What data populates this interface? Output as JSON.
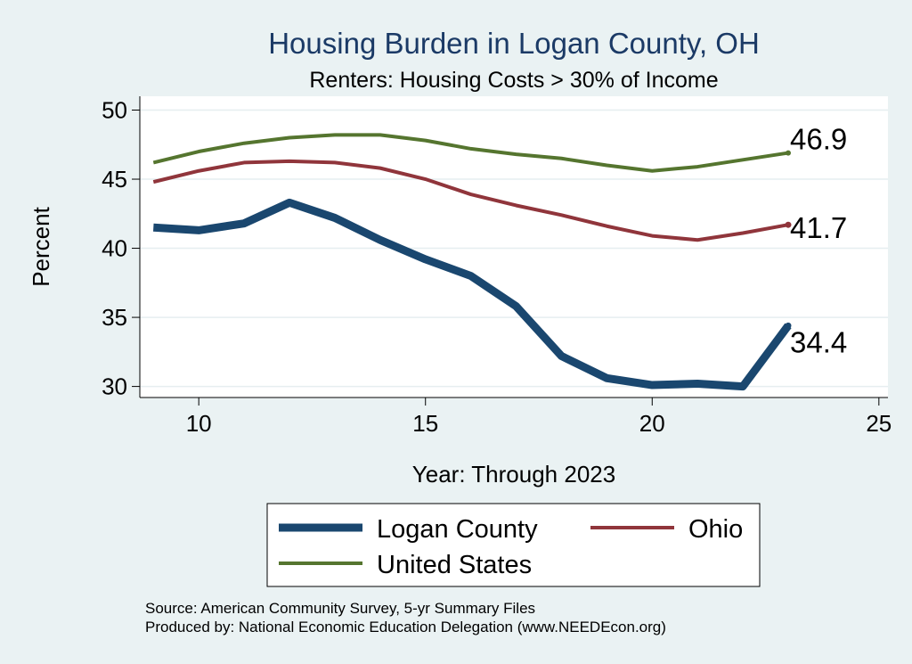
{
  "chart_data": {
    "type": "line",
    "title": "Housing Burden in Logan County, OH",
    "subtitle": "Renters: Housing Costs > 30% of Income",
    "xlabel": "Year: Through 2023",
    "ylabel": "Percent",
    "xlim": [
      8.7,
      25.2
    ],
    "ylim": [
      29.2,
      51
    ],
    "xticks": [
      10,
      15,
      20,
      25
    ],
    "yticks": [
      30,
      35,
      40,
      45,
      50
    ],
    "grid": "horizontal",
    "x": [
      9,
      10,
      11,
      12,
      13,
      14,
      15,
      16,
      17,
      18,
      19,
      20,
      21,
      22,
      23
    ],
    "series": [
      {
        "name": "Logan County",
        "color": "#1a476f",
        "values": [
          41.5,
          41.3,
          41.8,
          43.3,
          42.2,
          40.6,
          39.2,
          38.0,
          35.8,
          32.2,
          30.6,
          30.1,
          30.2,
          30.0,
          34.4
        ],
        "end_label": "34.4"
      },
      {
        "name": "Ohio",
        "color": "#90353b",
        "values": [
          44.8,
          45.6,
          46.2,
          46.3,
          46.2,
          45.8,
          45.0,
          43.9,
          43.1,
          42.4,
          41.6,
          40.9,
          40.6,
          41.1,
          41.7
        ],
        "end_label": "41.7"
      },
      {
        "name": "United States",
        "color": "#55752f",
        "values": [
          46.2,
          47.0,
          47.6,
          48.0,
          48.2,
          48.2,
          47.8,
          47.2,
          46.8,
          46.5,
          46.0,
          45.6,
          45.9,
          46.4,
          46.9
        ],
        "end_label": "46.9"
      }
    ],
    "legend": {
      "position": "bottom",
      "items": [
        "Logan County",
        "Ohio",
        "United States"
      ]
    }
  },
  "footer": {
    "source": "Source: American Community Survey, 5-yr Summary Files",
    "produced_by": "Produced by: National Economic Education Delegation (www.NEEDEcon.org)"
  }
}
